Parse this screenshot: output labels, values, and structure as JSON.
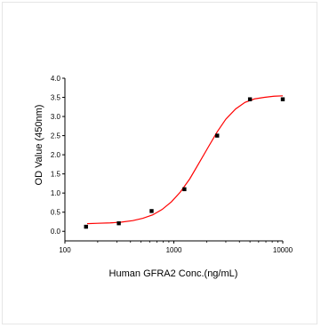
{
  "chart_data": {
    "type": "scatter",
    "title": "",
    "xlabel": "Human GFRA2 Conc.(ng/mL)",
    "ylabel": "OD Value (450nm)",
    "x_scale": "log",
    "xlim": [
      100,
      10000
    ],
    "ylim": [
      -0.25,
      4.0
    ],
    "x_ticks": [
      100,
      1000,
      10000
    ],
    "x_tick_labels": [
      "100",
      "1000",
      "10000"
    ],
    "y_ticks": [
      0.0,
      0.5,
      1.0,
      1.5,
      2.0,
      2.5,
      3.0,
      3.5,
      4.0
    ],
    "y_tick_labels": [
      "0.0",
      "0.5",
      "1.0",
      "1.5",
      "2.0",
      "2.5",
      "3.0",
      "3.5",
      "4.0"
    ],
    "grid": false,
    "series": [
      {
        "type": "scatter",
        "marker": "square",
        "color": "#000000",
        "x": [
          156.25,
          312.5,
          625,
          1250,
          2500,
          5000,
          10000
        ],
        "y": [
          0.12,
          0.21,
          0.53,
          1.1,
          2.5,
          3.45,
          3.45
        ]
      },
      {
        "type": "line",
        "fit": "4PL",
        "color": "#ff0000",
        "x": [
          160,
          200,
          260,
          330,
          420,
          520,
          640,
          780,
          950,
          1150,
          1400,
          1700,
          2050,
          2500,
          3000,
          3700,
          4500,
          5500,
          6800,
          8300,
          10000
        ],
        "y": [
          0.2,
          0.21,
          0.22,
          0.24,
          0.28,
          0.34,
          0.43,
          0.57,
          0.77,
          1.03,
          1.37,
          1.78,
          2.18,
          2.6,
          2.93,
          3.2,
          3.37,
          3.46,
          3.5,
          3.53,
          3.54
        ]
      }
    ]
  }
}
